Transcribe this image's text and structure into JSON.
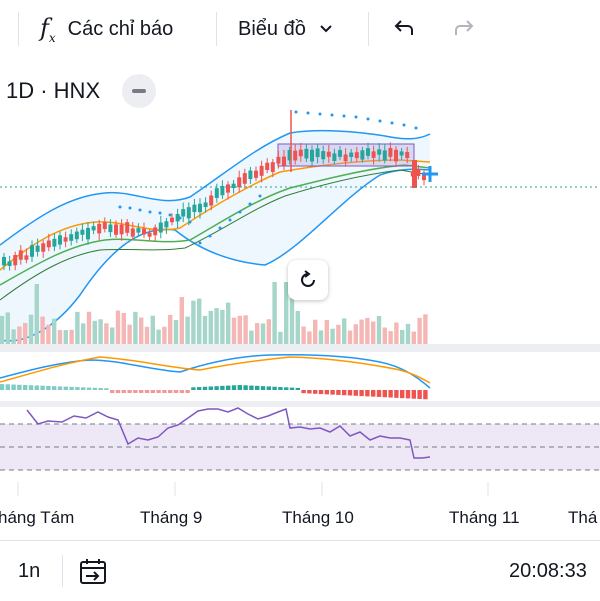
{
  "toolbar": {
    "indicators_label": "Các chỉ báo",
    "chart_type_label": "Biểu đồ",
    "icons": [
      "fx-icon",
      "chevron-down-icon",
      "undo-icon",
      "redo-icon"
    ]
  },
  "symbol": {
    "label": "1D · HNX"
  },
  "time_axis": {
    "labels": [
      "háng Tám",
      "Tháng 9",
      "Tháng 10",
      "Tháng 11",
      "Thá"
    ]
  },
  "bottom": {
    "range_label": "1n",
    "clock": "20:08:33"
  },
  "colors": {
    "up": "#26a69a",
    "down": "#ef5350",
    "bollinger": "#2196f3",
    "rsi": "#7e57c2",
    "macd": "#ff9800"
  }
}
